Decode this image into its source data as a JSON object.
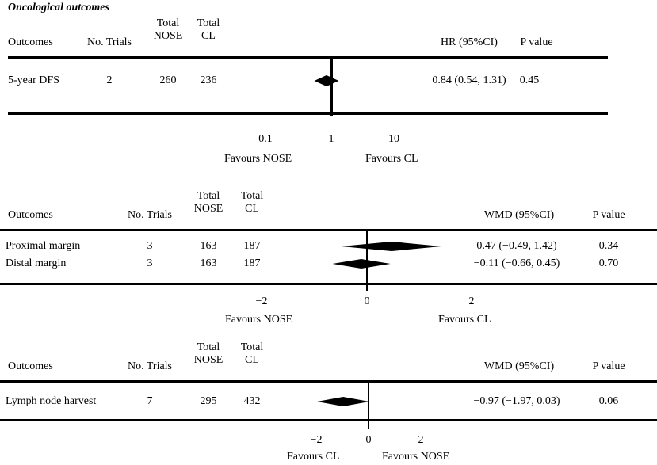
{
  "section_title": "Oncological outcomes",
  "chart_data": [
    {
      "type": "forest",
      "scale": "log",
      "col_outcomes": "Outcomes",
      "col_trials": "No. Trials",
      "col_nose": "Total\nNOSE",
      "col_cl": "Total\nCL",
      "col_effect": "HR (95%CI)",
      "col_p": "P value",
      "rows": [
        {
          "outcome": "5-year DFS",
          "trials": "2",
          "nose": "260",
          "cl": "236",
          "effect_text": "0.84 (0.54, 1.31)",
          "p": "0.45",
          "estimate": 0.84,
          "lower": 0.54,
          "upper": 1.31
        }
      ],
      "ticks": [
        {
          "value": 0.1,
          "label": "0.1"
        },
        {
          "value": 1,
          "label": "1"
        },
        {
          "value": 10,
          "label": "10"
        }
      ],
      "favours_left": "Favours NOSE",
      "favours_right": "Favours CL"
    },
    {
      "type": "forest",
      "scale": "linear",
      "col_outcomes": "Outcomes",
      "col_trials": "No. Trials",
      "col_nose": "Total\nNOSE",
      "col_cl": "Total\nCL",
      "col_effect": "WMD (95%CI)",
      "col_p": "P  value",
      "rows": [
        {
          "outcome": "Proximal margin",
          "trials": "3",
          "nose": "163",
          "cl": "187",
          "effect_text": "0.47 (−0.49, 1.42)",
          "p": "0.34",
          "estimate": 0.47,
          "lower": -0.49,
          "upper": 1.42
        },
        {
          "outcome": "Distal margin",
          "trials": "3",
          "nose": "163",
          "cl": "187",
          "effect_text": "−0.11 (−0.66, 0.45)",
          "p": "0.70",
          "estimate": -0.11,
          "lower": -0.66,
          "upper": 0.45
        }
      ],
      "ticks": [
        {
          "value": -2,
          "label": "−2"
        },
        {
          "value": 0,
          "label": "0"
        },
        {
          "value": 2,
          "label": "2"
        }
      ],
      "favours_left": "Favours NOSE",
      "favours_right": "Favours CL"
    },
    {
      "type": "forest",
      "scale": "linear",
      "col_outcomes": "Outcomes",
      "col_trials": "No. Trials",
      "col_nose": "Total\nNOSE",
      "col_cl": "Total\nCL",
      "col_effect": "WMD (95%CI)",
      "col_p": "P  value",
      "rows": [
        {
          "outcome": "Lymph node  harvest",
          "trials": "7",
          "nose": "295",
          "cl": "432",
          "effect_text": "−0.97 (−1.97, 0.03)",
          "p": "0.06",
          "estimate": -0.97,
          "lower": -1.97,
          "upper": 0.03
        }
      ],
      "ticks": [
        {
          "value": -2,
          "label": "−2"
        },
        {
          "value": 0,
          "label": "0"
        },
        {
          "value": 2,
          "label": "2"
        }
      ],
      "favours_left": "Favours CL",
      "favours_right": "Favours NOSE"
    }
  ]
}
